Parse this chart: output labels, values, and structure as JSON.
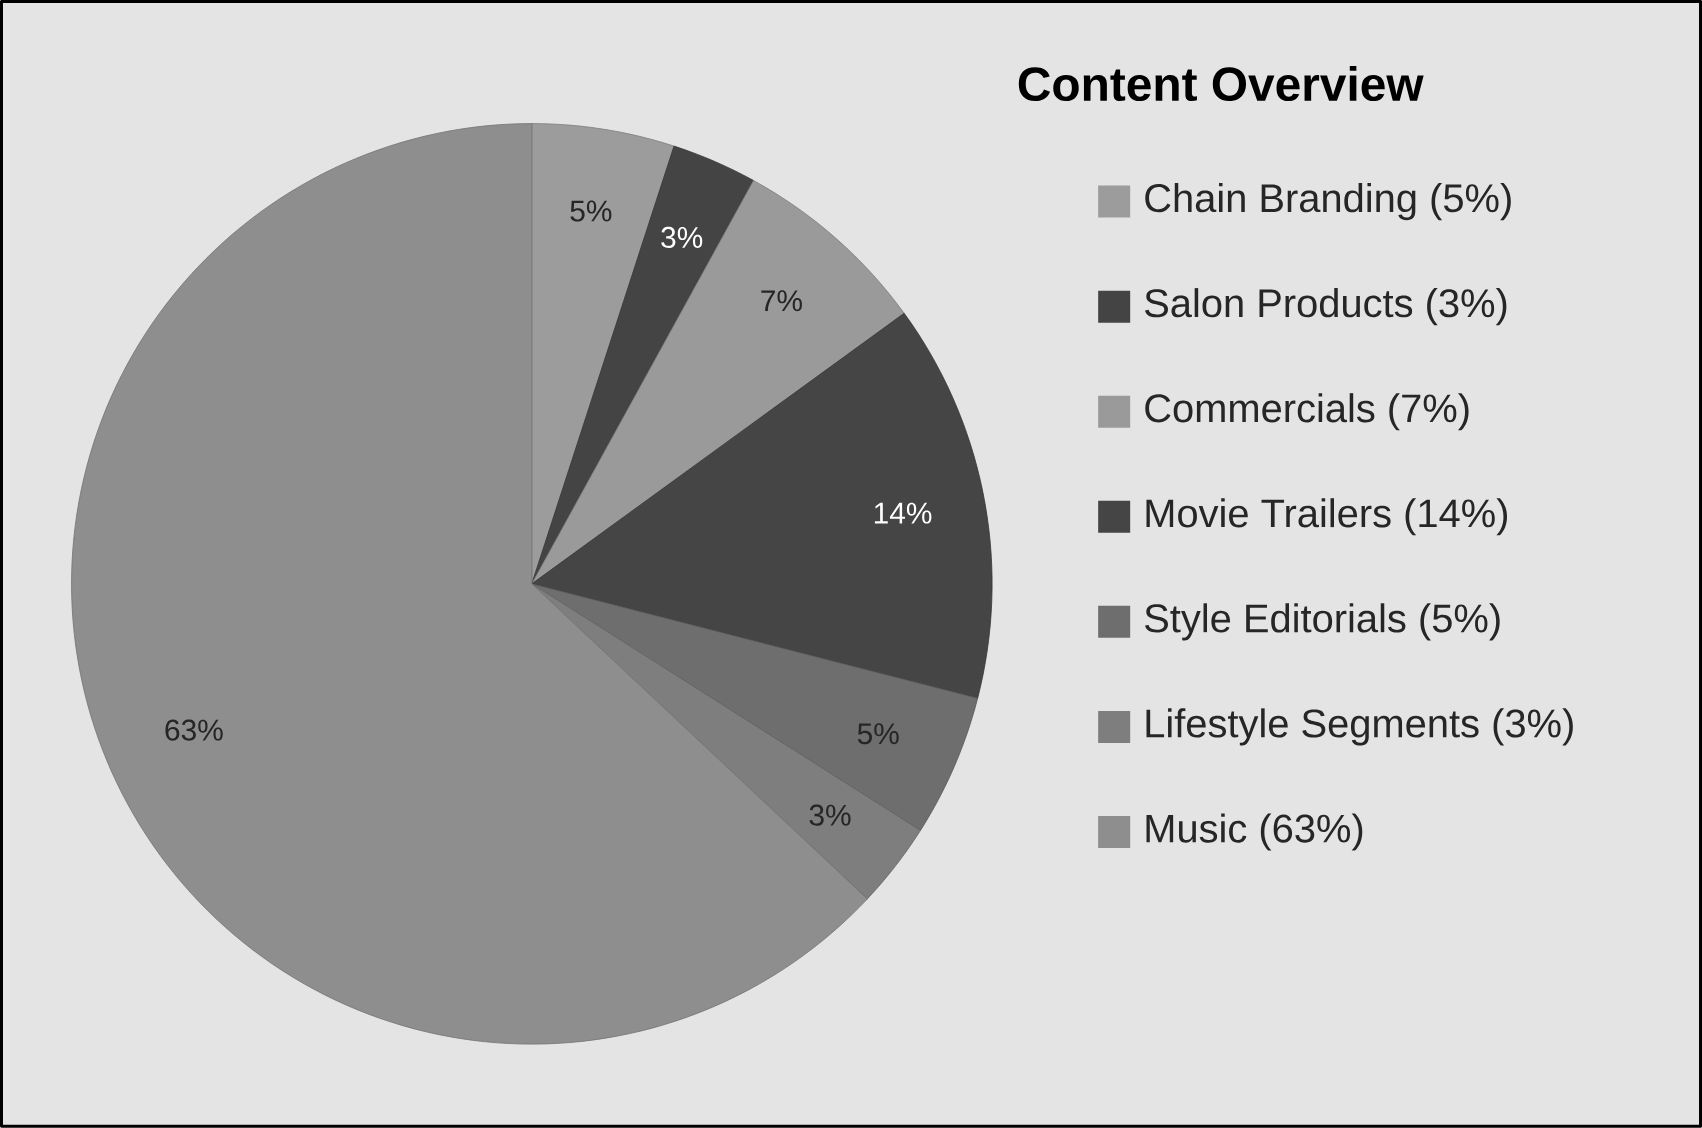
{
  "chart_data": {
    "type": "pie",
    "title": "Content Overview",
    "categories": [
      "Chain Branding (5%)",
      "Salon Products (3%)",
      "Commercials (7%)",
      "Movie Trailers (14%)",
      "Style Editorials (5%)",
      "Lifestyle Segments (3%)",
      "Music (63%)"
    ],
    "values": [
      5,
      3,
      7,
      14,
      5,
      3,
      63
    ],
    "value_labels": [
      "5%",
      "3%",
      "7%",
      "14%",
      "5%",
      "3%",
      "63%"
    ],
    "colors": [
      "#9c9c9c",
      "#444444",
      "#9a9a9a",
      "#454545",
      "#6e6e6e",
      "#7e7e7e",
      "#8e8e8e"
    ],
    "legend": "right"
  }
}
